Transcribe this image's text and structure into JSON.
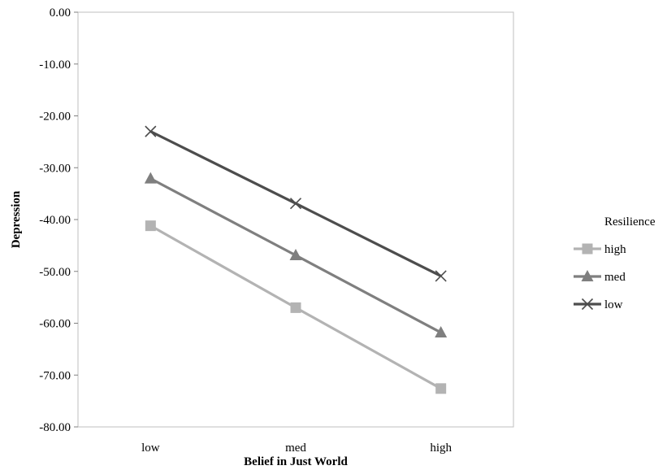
{
  "chart_data": {
    "type": "line",
    "title": "",
    "xlabel": "Belief in  Just World",
    "ylabel": "Depression",
    "categories": [
      "low",
      "med",
      "high"
    ],
    "ylim": [
      -80,
      0
    ],
    "yticks": [
      "0.00",
      "-10.00",
      "-20.00",
      "-30.00",
      "-40.00",
      "-50.00",
      "-60.00",
      "-70.00",
      "-80.00"
    ],
    "grid": false,
    "legend": {
      "title": "Resilience",
      "position": "right"
    },
    "series": [
      {
        "name": "high",
        "values": [
          -41.2,
          -57.0,
          -72.6
        ],
        "color": "#b3b3b3",
        "marker": "square"
      },
      {
        "name": "med",
        "values": [
          -32.1,
          -46.9,
          -61.8
        ],
        "color": "#7f7f7f",
        "marker": "triangle"
      },
      {
        "name": "low",
        "values": [
          -23.0,
          -36.9,
          -50.9
        ],
        "color": "#4d4d4d",
        "marker": "x"
      }
    ]
  }
}
